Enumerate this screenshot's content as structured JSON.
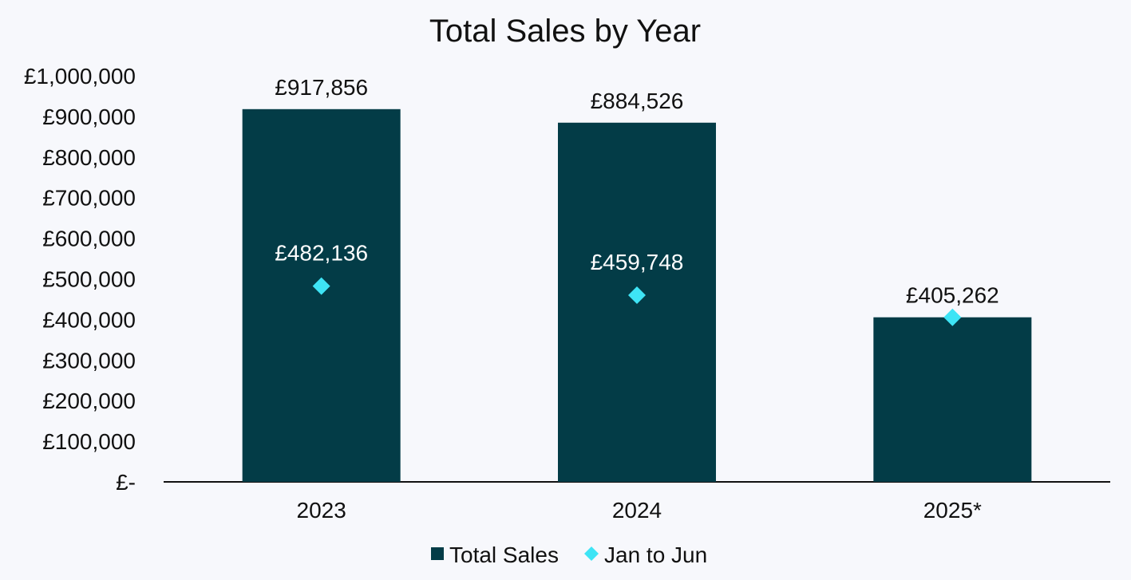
{
  "colors": {
    "background": "#f7f8fc",
    "bar": "#033c47",
    "marker": "#3ee4f5",
    "text": "#111111",
    "bar_label_on_dark": "#ffffff",
    "axis": "#111111"
  },
  "chart_data": {
    "type": "bar",
    "title": "Total Sales by Year",
    "xlabel": "",
    "ylabel": "",
    "categories": [
      "2023",
      "2024",
      "2025*"
    ],
    "series": [
      {
        "name": "Total Sales",
        "kind": "bar",
        "values": [
          917856,
          884526,
          405262
        ],
        "data_labels": [
          "£917,856",
          "£884,526",
          "£405,262"
        ]
      },
      {
        "name": "Jan to Jun",
        "kind": "marker",
        "marker": "diamond",
        "values": [
          482136,
          459748,
          405262
        ],
        "data_labels": [
          "£482,136",
          "£459,748",
          ""
        ]
      }
    ],
    "ylim": [
      0,
      1000000
    ],
    "y_ticks": [
      0,
      100000,
      200000,
      300000,
      400000,
      500000,
      600000,
      700000,
      800000,
      900000,
      1000000
    ],
    "y_tick_labels": [
      "£-",
      "£100,000",
      "£200,000",
      "£300,000",
      "£400,000",
      "£500,000",
      "£600,000",
      "£700,000",
      "£800,000",
      "£900,000",
      "£1,000,000"
    ],
    "grid": false,
    "legend_position": "bottom"
  }
}
